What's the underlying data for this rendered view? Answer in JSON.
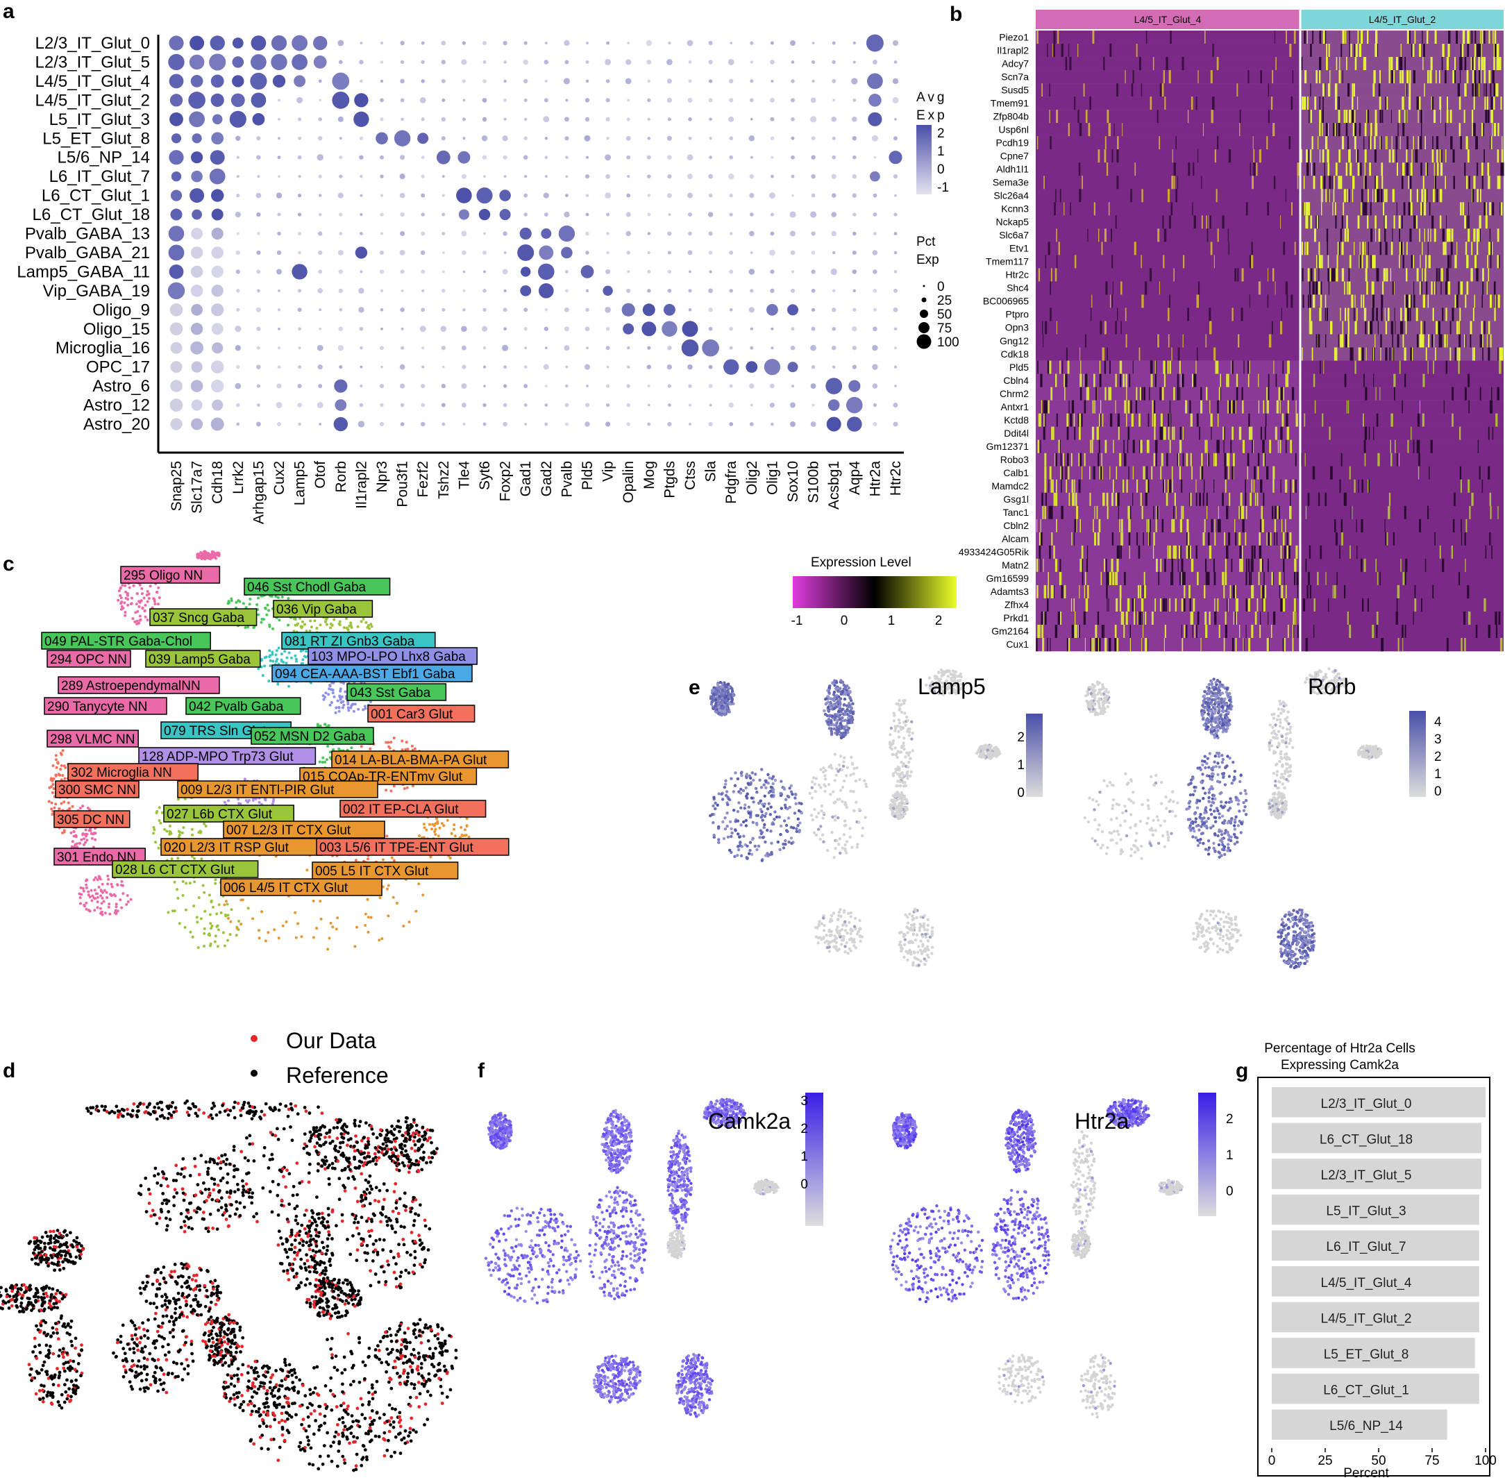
{
  "panel_labels": [
    "a",
    "b",
    "c",
    "d",
    "e",
    "f",
    "g"
  ],
  "chart_data": [
    {
      "id": "a",
      "type": "scatter",
      "subtype": "dotplot",
      "rows": [
        "L2/3_IT_Glut_0",
        "L2/3_IT_Glut_5",
        "L4/5_IT_Glut_4",
        "L4/5_IT_Glut_2",
        "L5_IT_Glut_3",
        "L5_ET_Glut_8",
        "L5/6_NP_14",
        "L6_IT_Glut_7",
        "L6_CT_Glut_1",
        "L6_CT_Glut_18",
        "Pvalb_GABA_13",
        "Pvalb_GABA_21",
        "Lamp5_GABA_11",
        "Vip_GABA_19",
        "Oligo_9",
        "Oligo_15",
        "Microglia_16",
        "OPC_17",
        "Astro_6",
        "Astro_12",
        "Astro_20"
      ],
      "genes": [
        "Snap25",
        "Slc17a7",
        "Cdh18",
        "Lrrk2",
        "Arhgap15",
        "Cux2",
        "Lamp5",
        "Otof",
        "Rorb",
        "Il1rapl2",
        "Npr3",
        "Pou3f1",
        "Fezf2",
        "Tshz2",
        "Tle4",
        "Syt6",
        "Foxp2",
        "Gad1",
        "Gad2",
        "Pvalb",
        "Pld5",
        "Vip",
        "Opalin",
        "Mog",
        "Ptgds",
        "Ctss",
        "Sla",
        "Pdgfra",
        "Olig2",
        "Olig1",
        "Sox10",
        "S100b",
        "Acsbg1",
        "Aqp4",
        "Htr2a",
        "Htr2c"
      ],
      "high_expression": [
        {
          "row": "L2/3_IT_Glut_0",
          "genes": [
            "Snap25",
            "Slc17a7",
            "Cdh18",
            "Lrrk2",
            "Arhgap15",
            "Cux2",
            "Lamp5",
            "Otof",
            "Htr2a"
          ]
        },
        {
          "row": "L2/3_IT_Glut_5",
          "genes": [
            "Snap25",
            "Slc17a7",
            "Cdh18",
            "Lrrk2",
            "Arhgap15",
            "Cux2",
            "Lamp5",
            "Otof"
          ]
        },
        {
          "row": "L4/5_IT_Glut_4",
          "genes": [
            "Snap25",
            "Slc17a7",
            "Cdh18",
            "Lrrk2",
            "Arhgap15",
            "Cux2",
            "Lamp5",
            "Rorb",
            "Htr2a"
          ]
        },
        {
          "row": "L4/5_IT_Glut_2",
          "genes": [
            "Snap25",
            "Slc17a7",
            "Cdh18",
            "Lrrk2",
            "Arhgap15",
            "Rorb",
            "Il1rapl2",
            "Htr2a"
          ]
        },
        {
          "row": "L5_IT_Glut_3",
          "genes": [
            "Snap25",
            "Slc17a7",
            "Cdh18",
            "Lrrk2",
            "Arhgap15",
            "Il1rapl2",
            "Htr2a"
          ]
        },
        {
          "row": "L5_ET_Glut_8",
          "genes": [
            "Snap25",
            "Slc17a7",
            "Cdh18",
            "Npr3",
            "Pou3f1",
            "Fezf2"
          ]
        },
        {
          "row": "L5/6_NP_14",
          "genes": [
            "Snap25",
            "Slc17a7",
            "Cdh18",
            "Tshz2",
            "Tle4",
            "Htr2c"
          ]
        },
        {
          "row": "L6_IT_Glut_7",
          "genes": [
            "Snap25",
            "Slc17a7",
            "Cdh18",
            "Htr2a"
          ]
        },
        {
          "row": "L6_CT_Glut_1",
          "genes": [
            "Snap25",
            "Slc17a7",
            "Cdh18",
            "Tle4",
            "Syt6",
            "Foxp2"
          ]
        },
        {
          "row": "L6_CT_Glut_18",
          "genes": [
            "Snap25",
            "Slc17a7",
            "Cdh18",
            "Tle4",
            "Syt6",
            "Foxp2"
          ]
        },
        {
          "row": "Pvalb_GABA_13",
          "genes": [
            "Snap25",
            "Gad1",
            "Gad2",
            "Pvalb"
          ]
        },
        {
          "row": "Pvalb_GABA_21",
          "genes": [
            "Snap25",
            "Il1rapl2",
            "Gad1",
            "Gad2",
            "Pvalb"
          ]
        },
        {
          "row": "Lamp5_GABA_11",
          "genes": [
            "Snap25",
            "Lamp5",
            "Gad1",
            "Gad2",
            "Pld5"
          ]
        },
        {
          "row": "Vip_GABA_19",
          "genes": [
            "Snap25",
            "Gad1",
            "Gad2",
            "Vip"
          ]
        },
        {
          "row": "Oligo_9",
          "genes": [
            "Opalin",
            "Mog",
            "Ptgds",
            "Olig1",
            "Sox10"
          ]
        },
        {
          "row": "Oligo_15",
          "genes": [
            "Opalin",
            "Mog",
            "Ptgds",
            "Ctss"
          ]
        },
        {
          "row": "Microglia_16",
          "genes": [
            "Ctss",
            "Sla"
          ]
        },
        {
          "row": "OPC_17",
          "genes": [
            "Pdgfra",
            "Olig2",
            "Olig1",
            "Sox10"
          ]
        },
        {
          "row": "Astro_6",
          "genes": [
            "Rorb",
            "Acsbg1",
            "Aqp4"
          ]
        },
        {
          "row": "Astro_12",
          "genes": [
            "Rorb",
            "Acsbg1",
            "Aqp4"
          ]
        },
        {
          "row": "Astro_20",
          "genes": [
            "Rorb",
            "Acsbg1",
            "Aqp4"
          ]
        }
      ],
      "color_legend": {
        "title": "Avg Exp",
        "ticks": [
          "2",
          "1",
          "0",
          "-1"
        ],
        "low": "#d9d8ea",
        "high": "#4a4fa8"
      },
      "size_legend": {
        "title": "Pct Exp",
        "ticks": [
          "0",
          "25",
          "50",
          "75",
          "100"
        ]
      }
    },
    {
      "id": "b",
      "type": "heatmap",
      "groups": [
        "L4/5_IT_Glut_4",
        "L4/5_IT_Glut_2"
      ],
      "group_colors": [
        "#d36bb7",
        "#7fd6d8"
      ],
      "genes": [
        "Piezo1",
        "Il1rapl2",
        "Adcy7",
        "Scn7a",
        "Susd5",
        "Tmem91",
        "Zfp804b",
        "Usp6nl",
        "Pcdh19",
        "Cpne7",
        "Aldh1l1",
        "Sema3e",
        "Slc26a4",
        "Kcnn3",
        "Nckap5",
        "Slc6a7",
        "Etv1",
        "Tmem117",
        "Htr2c",
        "Shc4",
        "BC006965",
        "Ptpro",
        "Opn3",
        "Gng12",
        "Cdk18",
        "Pld5",
        "Cbln4",
        "Chrm2",
        "Antxr1",
        "Kctd8",
        "Ddit4l",
        "Gm12371",
        "Robo3",
        "Calb1",
        "Mamdc2",
        "Gsg1l",
        "Tanc1",
        "Cbln2",
        "Alcam",
        "4933424G05Rik",
        "Matn2",
        "Gm16599",
        "Adamts3",
        "Zfhx4",
        "Prkd1",
        "Gm2164",
        "Cux1"
      ],
      "higher_in_group_2": [
        "Piezo1",
        "Il1rapl2",
        "Adcy7",
        "Scn7a",
        "Susd5",
        "Tmem91",
        "Zfp804b",
        "Usp6nl",
        "Pcdh19",
        "Cpne7",
        "Aldh1l1",
        "Sema3e",
        "Slc26a4",
        "Kcnn3",
        "Nckap5",
        "Slc6a7",
        "Etv1",
        "Tmem117",
        "Htr2c",
        "Shc4",
        "BC006965",
        "Ptpro",
        "Opn3",
        "Gng12",
        "Cdk18"
      ],
      "higher_in_group_1": [
        "Pld5",
        "Cbln4",
        "Chrm2",
        "Antxr1",
        "Kctd8",
        "Ddit4l",
        "Gm12371",
        "Robo3",
        "Calb1",
        "Mamdc2",
        "Gsg1l",
        "Tanc1",
        "Cbln2",
        "Alcam",
        "4933424G05Rik",
        "Matn2",
        "Gm16599",
        "Adamts3",
        "Zfhx4",
        "Prkd1",
        "Gm2164",
        "Cux1"
      ],
      "legend": {
        "title": "Expression Level",
        "ticks": [
          "-1",
          "0",
          "1",
          "2"
        ],
        "colors": [
          "#e03ce0",
          "#000000",
          "#eaff2a"
        ]
      }
    },
    {
      "id": "c",
      "type": "scatter",
      "subtype": "umap",
      "labels": [
        {
          "text": "295 Oligo NN",
          "color": "#e96aa7"
        },
        {
          "text": "046 Sst Chodl Gaba",
          "color": "#49c65a"
        },
        {
          "text": "036 Vip Gaba",
          "color": "#9ac43a"
        },
        {
          "text": "037 Sncg Gaba",
          "color": "#9ac43a"
        },
        {
          "text": "049 PAL-STR Gaba-Chol",
          "color": "#49c65a"
        },
        {
          "text": "081 RT ZI Gnb3 Gaba",
          "color": "#3bc4c4"
        },
        {
          "text": "294 OPC NN",
          "color": "#e96aa7"
        },
        {
          "text": "039 Lamp5 Gaba",
          "color": "#9ac43a"
        },
        {
          "text": "103 MPO-LPO Lhx8 Gaba",
          "color": "#8f8fe6"
        },
        {
          "text": "094 CEA-AAA-BST Ebf1 Gaba",
          "color": "#4aa8e6"
        },
        {
          "text": "289 AstroependymalNN",
          "color": "#e96aa7"
        },
        {
          "text": "043 Sst Gaba",
          "color": "#49c65a"
        },
        {
          "text": "290 Tanycyte NN",
          "color": "#e96aa7"
        },
        {
          "text": "042 Pvalb Gaba",
          "color": "#49c65a"
        },
        {
          "text": "001 Car3 Glut",
          "color": "#f2705c"
        },
        {
          "text": "079 TRS Sln Glut",
          "color": "#3bc4c4"
        },
        {
          "text": "298 VLMC NN",
          "color": "#e96aa7"
        },
        {
          "text": "052 MSN D2 Gaba",
          "color": "#49c65a"
        },
        {
          "text": "128 ADP-MPO Trp73 Glut",
          "color": "#b08fe6"
        },
        {
          "text": "014 LA-BLA-BMA-PA Glut",
          "color": "#e8962f"
        },
        {
          "text": "302 Microglia NN",
          "color": "#f2705c"
        },
        {
          "text": "015 COAp-TR-ENTmv Glut",
          "color": "#e8962f"
        },
        {
          "text": "300 SMC NN",
          "color": "#f2705c"
        },
        {
          "text": "009 L2/3 IT ENTl-PIR Glut",
          "color": "#e8962f"
        },
        {
          "text": "027 L6b CTX Glut",
          "color": "#9ac43a"
        },
        {
          "text": "002 IT EP-CLA Glut",
          "color": "#f2705c"
        },
        {
          "text": "305 DC NN",
          "color": "#f2705c"
        },
        {
          "text": "007 L2/3 IT CTX Glut",
          "color": "#e8962f"
        },
        {
          "text": "020 L2/3 IT RSP Glut",
          "color": "#e8962f"
        },
        {
          "text": "003 L5/6 IT TPE-ENT Glut",
          "color": "#f2705c"
        },
        {
          "text": "301 Endo NN",
          "color": "#e96aa7"
        },
        {
          "text": "028 L6 CT CTX Glut",
          "color": "#9ac43a"
        },
        {
          "text": "005 L5 IT CTX Glut",
          "color": "#e8962f"
        },
        {
          "text": "006 L4/5 IT CTX Glut",
          "color": "#e8962f"
        }
      ]
    },
    {
      "id": "d",
      "type": "scatter",
      "subtype": "umap",
      "series": [
        {
          "name": "Our Data",
          "color": "#e8262a"
        },
        {
          "name": "Reference",
          "color": "#000000"
        }
      ]
    },
    {
      "id": "e",
      "type": "scatter",
      "subtype": "umap-feature",
      "panels": [
        {
          "gene": "Lamp5",
          "legend_ticks": [
            "2",
            "1",
            "0"
          ],
          "high": "#4a4fa8",
          "low": "#d9d9d9"
        },
        {
          "gene": "Rorb",
          "legend_ticks": [
            "4",
            "3",
            "2",
            "1",
            "0"
          ],
          "high": "#4a4fa8",
          "low": "#d9d9d9"
        }
      ]
    },
    {
      "id": "f",
      "type": "scatter",
      "subtype": "umap-feature",
      "panels": [
        {
          "gene": "Camk2a",
          "legend_ticks": [
            "3",
            "2",
            "1",
            "0"
          ],
          "high": "#3a1ee6",
          "low": "#d9d9d9"
        },
        {
          "gene": "Htr2a",
          "legend_ticks": [
            "2",
            "1",
            "0"
          ],
          "high": "#3a1ee6",
          "low": "#d9d9d9"
        }
      ]
    },
    {
      "id": "g",
      "type": "bar",
      "orientation": "horizontal",
      "title": "Percentage of Htr2a Cells\nExpressing Camk2a",
      "categories": [
        "L2/3_IT_Glut_0",
        "L6_CT_Glut_18",
        "L2/3_IT_Glut_5",
        "L5_IT_Glut_3",
        "L6_IT_Glut_7",
        "L4/5_IT_Glut_4",
        "L4/5_IT_Glut_2",
        "L5_ET_Glut_8",
        "L6_CT_Glut_1",
        "L5/6_NP_14"
      ],
      "values": [
        100,
        98,
        98,
        97,
        97,
        97,
        97,
        95,
        97,
        82
      ],
      "xlabel": "Percent",
      "xticks": [
        0,
        25,
        50,
        75,
        100
      ],
      "xlim": [
        0,
        100
      ],
      "bar_color": "#d6d6d6"
    }
  ]
}
